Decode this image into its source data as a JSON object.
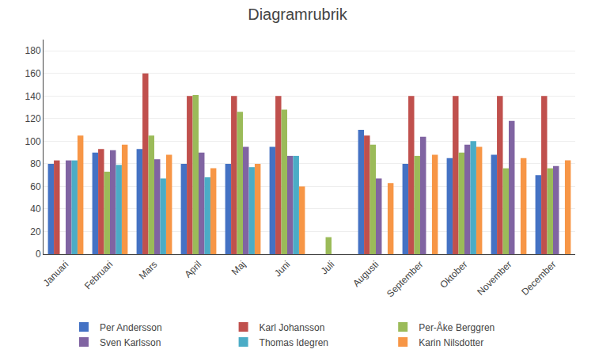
{
  "chart_data": {
    "type": "bar",
    "title": "Diagramrubrik",
    "categories": [
      "Januari",
      "Februari",
      "Mars",
      "April",
      "Maj",
      "Juni",
      "Juli",
      "Augusti",
      "September",
      "Oktober",
      "November",
      "December"
    ],
    "series": [
      {
        "name": "Per Andersson",
        "color": "#4472C4",
        "values": [
          80,
          90,
          93,
          80,
          80,
          95,
          0,
          110,
          80,
          85,
          88,
          70
        ]
      },
      {
        "name": "Karl Johansson",
        "color": "#C0504D",
        "values": [
          83,
          93,
          160,
          140,
          140,
          140,
          0,
          105,
          140,
          140,
          140,
          140
        ]
      },
      {
        "name": "Per-Åke Berggren",
        "color": "#9BBB59",
        "values": [
          0,
          73,
          105,
          141,
          126,
          128,
          15,
          97,
          87,
          90,
          76,
          76
        ]
      },
      {
        "name": "Sven Karlsson",
        "color": "#8064A2",
        "values": [
          83,
          92,
          84,
          90,
          95,
          87,
          0,
          67,
          104,
          97,
          118,
          78
        ]
      },
      {
        "name": "Thomas Idegren",
        "color": "#4BACC6",
        "values": [
          83,
          79,
          67,
          68,
          77,
          87,
          0,
          0,
          0,
          100,
          0,
          0
        ]
      },
      {
        "name": "Karin Nilsdotter",
        "color": "#F79646",
        "values": [
          105,
          97,
          88,
          76,
          80,
          60,
          0,
          63,
          88,
          95,
          85,
          83
        ]
      }
    ],
    "ylim": [
      0,
      190
    ],
    "yticks": [
      0,
      20,
      40,
      60,
      80,
      100,
      120,
      140,
      160,
      180
    ],
    "grid": true,
    "legend": "bottom"
  }
}
